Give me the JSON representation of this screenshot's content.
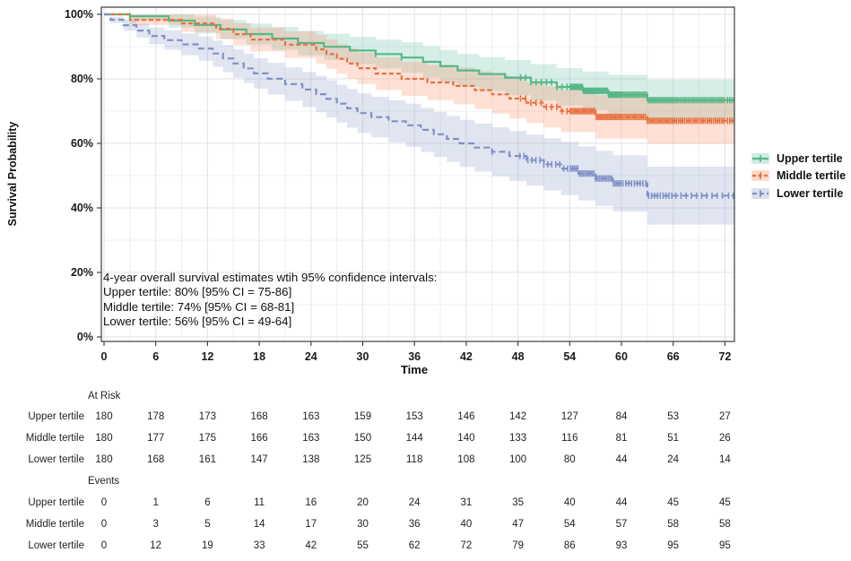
{
  "chart_data": {
    "type": "line",
    "subtype": "kaplan-meier-step",
    "title": "",
    "xlabel": "Time",
    "ylabel": "Survival Probability",
    "time_points": [
      0,
      6,
      12,
      18,
      24,
      30,
      36,
      42,
      48,
      54,
      60,
      66,
      72
    ],
    "x_tick_labels": [
      "0",
      "6",
      "12",
      "18",
      "24",
      "30",
      "36",
      "42",
      "48",
      "54",
      "60",
      "66",
      "72"
    ],
    "y_tick_values": [
      0,
      20,
      40,
      60,
      80,
      100
    ],
    "y_tick_labels": [
      "0%",
      "20%",
      "40%",
      "60%",
      "80%",
      "100%"
    ],
    "x_range": [
      -0.3,
      73.1
    ],
    "y_range": [
      0,
      100
    ],
    "grid": "on",
    "legend_position": "right",
    "series": [
      {
        "name": "Upper tertile",
        "line_color": "#56b787",
        "band_color": "#66c2a5",
        "dash": "",
        "legend_dash": "",
        "survival_pct": [
          100,
          99.4,
          96.7,
          93.9,
          91.1,
          88.8,
          86.6,
          82.6,
          80.4,
          77.5,
          75.1,
          73.4,
          73.4
        ],
        "ci_halfwidth_at_72": 6.8,
        "at_risk": [
          180,
          178,
          173,
          168,
          163,
          159,
          153,
          146,
          142,
          127,
          84,
          53,
          27
        ],
        "events": [
          0,
          1,
          6,
          11,
          16,
          20,
          24,
          31,
          35,
          40,
          44,
          45,
          45
        ]
      },
      {
        "name": "Middle tertile",
        "line_color": "#e8713f",
        "band_color": "#fc8d62",
        "dash": "5,3",
        "legend_dash": "4,2.5",
        "survival_pct": [
          100,
          98.3,
          97.2,
          92.2,
          90.6,
          83.3,
          80.0,
          77.8,
          73.9,
          70.0,
          68.2,
          67.0,
          67.0
        ],
        "ci_halfwidth_at_72": 7.6,
        "at_risk": [
          180,
          177,
          175,
          166,
          163,
          150,
          144,
          140,
          133,
          116,
          81,
          51,
          26
        ],
        "events": [
          0,
          3,
          5,
          14,
          17,
          30,
          36,
          40,
          47,
          54,
          57,
          58,
          58
        ]
      },
      {
        "name": "Lower tertile",
        "line_color": "#8191c6",
        "band_color": "#8da0cb",
        "dash": "7,4",
        "legend_dash": "5,3",
        "survival_pct": [
          100,
          93.3,
          89.4,
          81.7,
          76.7,
          69.4,
          65.6,
          60.0,
          56.1,
          52.2,
          47.6,
          43.8,
          43.8
        ],
        "ci_halfwidth_at_72": 9.6,
        "at_risk": [
          180,
          168,
          161,
          147,
          138,
          125,
          118,
          108,
          100,
          80,
          44,
          24,
          14
        ],
        "events": [
          0,
          12,
          19,
          33,
          42,
          55,
          62,
          72,
          79,
          86,
          93,
          95,
          95
        ]
      }
    ],
    "annotation": {
      "lines": [
        "4-year overall survival estimates wtih 95% confidence intervals:",
        "Upper tertile: 80% [95% CI = 75-86]",
        "Middle tertile: 74% [95% CI = 68-81]",
        "Lower tertile: 56% [95% CI = 49-64]"
      ]
    },
    "risk_table": {
      "header": "At Risk"
    },
    "events_table": {
      "header": "Events"
    }
  },
  "colors": {
    "panel_border": "#3c3c3c",
    "grid_major": "#e2e2e8",
    "grid_minor": "#efeff4",
    "axis_tick": "#333333",
    "text": "#111111"
  }
}
